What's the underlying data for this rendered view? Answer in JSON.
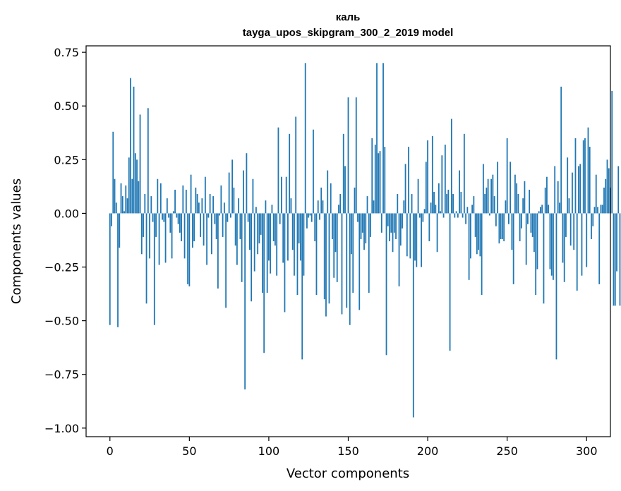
{
  "chart_data": {
    "type": "bar",
    "title": "каль",
    "subtitle": "tayga_upos_skipgram_300_2_2019 model",
    "xlabel": "Vector components",
    "ylabel": "Components values",
    "xlim": [
      -15,
      315
    ],
    "ylim": [
      -1.04,
      0.78
    ],
    "xticks": [
      0,
      50,
      100,
      150,
      200,
      250,
      300
    ],
    "xtick_labels": [
      "0",
      "50",
      "100",
      "150",
      "200",
      "250",
      "300"
    ],
    "yticks": [
      -1.0,
      -0.75,
      -0.5,
      -0.25,
      0.0,
      0.25,
      0.5,
      0.75
    ],
    "ytick_labels": [
      "−1.00",
      "−0.75",
      "−0.50",
      "−0.25",
      "0.00",
      "0.25",
      "0.50",
      "0.75"
    ],
    "grid": false,
    "bar_color": "#1f77b4",
    "values": [
      -0.52,
      -0.06,
      0.38,
      0.16,
      0.05,
      -0.53,
      -0.16,
      0.14,
      0.08,
      0.01,
      0.13,
      0.07,
      0.26,
      0.63,
      0.16,
      0.59,
      0.28,
      0.25,
      0.15,
      0.46,
      -0.19,
      -0.11,
      0.09,
      -0.42,
      0.49,
      -0.21,
      0.08,
      -0.04,
      -0.52,
      -0.11,
      0.16,
      -0.24,
      0.14,
      -0.03,
      -0.04,
      -0.23,
      0.07,
      -0.02,
      -0.09,
      -0.21,
      0.01,
      0.11,
      -0.02,
      -0.05,
      -0.09,
      -0.13,
      0.13,
      -0.21,
      0.11,
      -0.33,
      -0.34,
      0.18,
      -0.16,
      -0.13,
      0.12,
      0.09,
      0.05,
      -0.11,
      0.07,
      -0.15,
      0.17,
      -0.24,
      -0.02,
      0.09,
      -0.19,
      0.08,
      -0.05,
      -0.12,
      -0.35,
      -0.01,
      0.13,
      -0.11,
      0.05,
      -0.44,
      -0.04,
      0.19,
      -0.02,
      0.25,
      0.12,
      -0.15,
      -0.24,
      0.07,
      -0.12,
      -0.32,
      0.2,
      -0.82,
      0.28,
      -0.04,
      -0.17,
      -0.41,
      0.16,
      -0.27,
      0.03,
      -0.19,
      -0.14,
      -0.1,
      -0.37,
      -0.65,
      0.06,
      -0.37,
      -0.22,
      -0.28,
      0.04,
      -0.13,
      -0.15,
      -0.29,
      0.4,
      -0.05,
      0.17,
      -0.23,
      -0.46,
      0.17,
      -0.22,
      0.37,
      0.07,
      -0.17,
      -0.29,
      0.45,
      -0.38,
      -0.14,
      -0.22,
      -0.68,
      -0.29,
      0.7,
      -0.07,
      -0.02,
      -0.01,
      -0.04,
      0.39,
      -0.13,
      -0.38,
      0.06,
      -0.03,
      0.12,
      0.06,
      -0.4,
      -0.48,
      0.2,
      -0.42,
      0.14,
      -0.12,
      -0.3,
      -0.18,
      -0.32,
      0.04,
      0.09,
      -0.47,
      0.37,
      0.22,
      -0.44,
      0.54,
      -0.52,
      -0.19,
      -0.37,
      0.12,
      0.54,
      -0.04,
      -0.45,
      -0.12,
      -0.09,
      -0.17,
      -0.14,
      0.08,
      -0.37,
      -0.11,
      0.35,
      0.06,
      0.32,
      0.7,
      0.28,
      0.29,
      -0.09,
      0.7,
      0.31,
      -0.66,
      -0.06,
      -0.13,
      -0.09,
      -0.18,
      -0.09,
      -0.12,
      0.09,
      -0.34,
      -0.15,
      -0.07,
      0.06,
      0.23,
      -0.2,
      0.31,
      -0.21,
      0.09,
      -0.95,
      -0.22,
      -0.25,
      0.16,
      -0.02,
      -0.25,
      -0.04,
      0.02,
      0.24,
      0.34,
      -0.13,
      0.05,
      0.36,
      0.1,
      0.04,
      -0.18,
      0.14,
      0.01,
      0.27,
      -0.02,
      0.32,
      0.09,
      0.11,
      -0.64,
      0.44,
      0.09,
      -0.02,
      0.01,
      -0.02,
      0.2,
      0.1,
      -0.02,
      0.37,
      -0.05,
      0.03,
      -0.31,
      -0.21,
      0.04,
      0.08,
      -0.11,
      -0.19,
      -0.17,
      -0.2,
      -0.38,
      0.23,
      0.09,
      0.12,
      0.16,
      -0.01,
      0.16,
      0.18,
      0.08,
      -0.06,
      0.24,
      -0.14,
      -0.12,
      -0.12,
      -0.13,
      0.06,
      0.35,
      -0.05,
      0.24,
      -0.17,
      -0.33,
      0.18,
      0.14,
      0.09,
      -0.13,
      -0.07,
      0.07,
      0.15,
      -0.24,
      -0.05,
      0.11,
      -0.09,
      -0.11,
      -0.18,
      -0.38,
      -0.26,
      0.01,
      0.03,
      0.04,
      -0.42,
      0.12,
      0.17,
      0.04,
      -0.26,
      -0.29,
      -0.31,
      0.22,
      -0.68,
      0.15,
      0.05,
      0.59,
      -0.23,
      -0.32,
      -0.11,
      0.26,
      0.07,
      -0.15,
      0.19,
      -0.17,
      0.35,
      -0.36,
      0.22,
      0.23,
      -0.29,
      0.34,
      0.35,
      -0.25,
      0.4,
      0.31,
      -0.12,
      -0.06,
      0.03,
      0.18,
      0.03,
      -0.33,
      0.04,
      0.04,
      0.12,
      0.16,
      0.25,
      0.21,
      0.12,
      0.57,
      -0.43,
      -0.43,
      -0.27,
      0.22,
      -0.43
    ]
  }
}
